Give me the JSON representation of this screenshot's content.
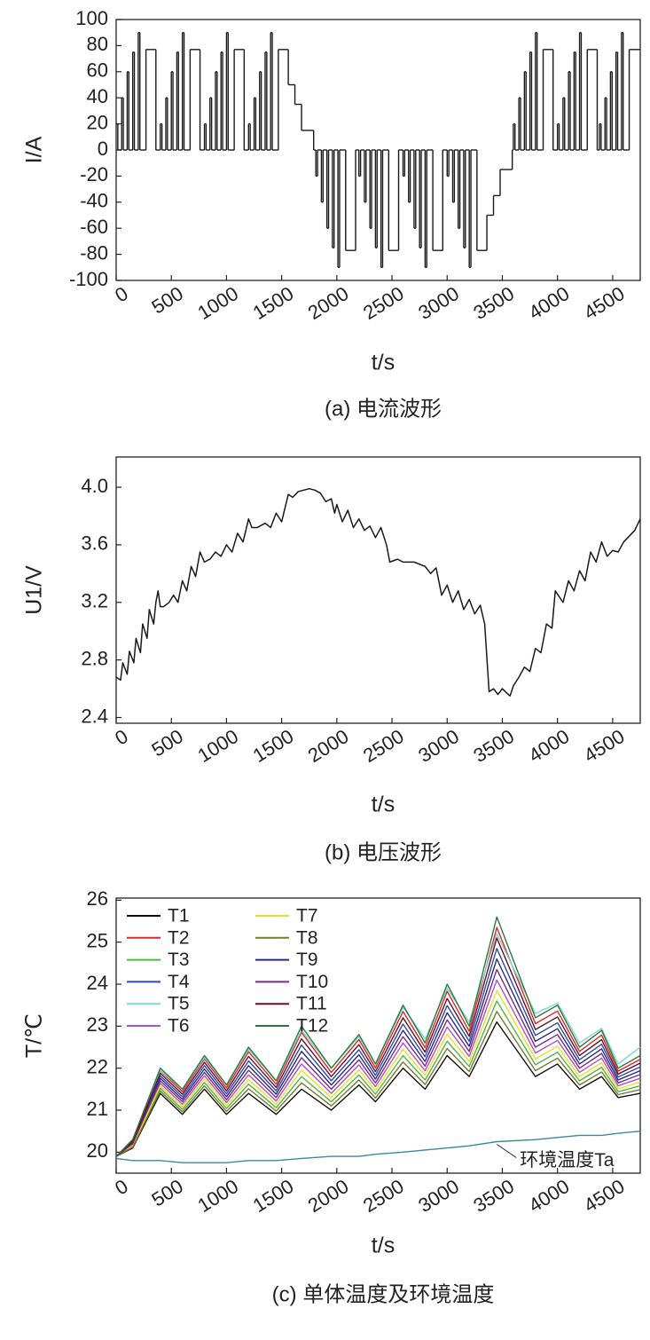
{
  "chart_data": [
    {
      "type": "line",
      "step": true,
      "title": "(a) 电流波形",
      "xlabel": "t/s",
      "ylabel": "I/A",
      "xlim": [
        0,
        4750
      ],
      "ylim": [
        -100,
        100
      ],
      "xticks": [
        0,
        500,
        1000,
        1500,
        2000,
        2500,
        3000,
        3500,
        4000,
        4500
      ],
      "yticks": [
        -100,
        -80,
        -60,
        -40,
        -20,
        0,
        20,
        40,
        60,
        80,
        100
      ],
      "x": [
        0,
        15,
        50,
        65,
        100,
        115,
        150,
        165,
        200,
        215,
        270,
        360,
        400,
        415,
        450,
        465,
        500,
        515,
        550,
        565,
        600,
        615,
        670,
        760,
        800,
        815,
        850,
        865,
        900,
        915,
        950,
        965,
        1000,
        1015,
        1070,
        1160,
        1200,
        1215,
        1250,
        1265,
        1300,
        1315,
        1350,
        1365,
        1400,
        1415,
        1470,
        1560,
        1620,
        1680,
        1790,
        1810,
        1825,
        1860,
        1875,
        1910,
        1925,
        1960,
        1975,
        2010,
        2025,
        2080,
        2170,
        2200,
        2215,
        2250,
        2265,
        2300,
        2315,
        2350,
        2365,
        2400,
        2415,
        2470,
        2560,
        2600,
        2615,
        2650,
        2665,
        2700,
        2715,
        2750,
        2765,
        2800,
        2815,
        2870,
        2960,
        3000,
        3015,
        3050,
        3065,
        3100,
        3115,
        3150,
        3165,
        3200,
        3215,
        3270,
        3360,
        3420,
        3480,
        3590,
        3600,
        3615,
        3650,
        3665,
        3700,
        3715,
        3750,
        3765,
        3800,
        3815,
        3870,
        3960,
        4000,
        4015,
        4050,
        4065,
        4100,
        4115,
        4150,
        4165,
        4200,
        4215,
        4270,
        4360,
        4380,
        4395,
        4430,
        4445,
        4480,
        4495,
        4530,
        4545,
        4580,
        4595,
        4650,
        4750
      ],
      "series": [
        {
          "color": "#1a1a1a",
          "values": [
            20,
            0,
            40,
            0,
            60,
            0,
            75,
            0,
            90,
            0,
            77,
            0,
            20,
            0,
            40,
            0,
            60,
            0,
            75,
            0,
            90,
            0,
            77,
            0,
            20,
            0,
            40,
            0,
            60,
            0,
            75,
            0,
            90,
            0,
            77,
            0,
            20,
            0,
            40,
            0,
            60,
            0,
            75,
            0,
            90,
            0,
            77,
            50,
            35,
            15,
            0,
            -20,
            0,
            -40,
            0,
            -60,
            0,
            -75,
            0,
            -90,
            0,
            -77,
            0,
            -20,
            0,
            -40,
            0,
            -60,
            0,
            -75,
            0,
            -90,
            0,
            -77,
            0,
            -20,
            0,
            -40,
            0,
            -60,
            0,
            -75,
            0,
            -90,
            0,
            -77,
            0,
            -20,
            0,
            -40,
            0,
            -60,
            0,
            -75,
            0,
            -90,
            0,
            -77,
            -50,
            -35,
            -15,
            0,
            20,
            0,
            40,
            0,
            60,
            0,
            75,
            0,
            90,
            0,
            77,
            0,
            20,
            0,
            40,
            0,
            60,
            0,
            75,
            0,
            90,
            0,
            77,
            0,
            20,
            0,
            40,
            0,
            60,
            0,
            75,
            0,
            90,
            0,
            77,
            77
          ]
        }
      ]
    },
    {
      "type": "line",
      "title": "(b) 电压波形",
      "xlabel": "t/s",
      "ylabel": "U1/V",
      "xlim": [
        0,
        4750
      ],
      "ylim": [
        2.36,
        4.21
      ],
      "xticks": [
        0,
        500,
        1000,
        1500,
        2000,
        2500,
        3000,
        3500,
        4000,
        4500
      ],
      "yticks": [
        {
          "value": 2.4,
          "label": "2.4"
        },
        {
          "value": 2.8,
          "label": "2.8"
        },
        {
          "value": 3.2,
          "label": "3.2"
        },
        {
          "value": 3.6,
          "label": "3.6"
        },
        {
          "value": 4.0,
          "label": "4.0"
        }
      ],
      "x": [
        0,
        40,
        60,
        100,
        120,
        160,
        180,
        220,
        240,
        280,
        300,
        340,
        360,
        380,
        400,
        430,
        480,
        520,
        560,
        600,
        640,
        680,
        720,
        760,
        800,
        850,
        900,
        950,
        1000,
        1050,
        1100,
        1150,
        1200,
        1230,
        1280,
        1350,
        1400,
        1450,
        1500,
        1560,
        1600,
        1650,
        1700,
        1750,
        1800,
        1850,
        1900,
        1950,
        1980,
        2000,
        2050,
        2100,
        2150,
        2200,
        2250,
        2300,
        2350,
        2400,
        2450,
        2480,
        2550,
        2600,
        2700,
        2800,
        2850,
        2900,
        2950,
        3000,
        3050,
        3100,
        3150,
        3200,
        3250,
        3300,
        3340,
        3380,
        3420,
        3460,
        3500,
        3540,
        3570,
        3600,
        3650,
        3700,
        3750,
        3800,
        3850,
        3900,
        3950,
        3980,
        4050,
        4100,
        4150,
        4200,
        4250,
        4300,
        4350,
        4400,
        4450,
        4500,
        4550,
        4600,
        4650,
        4700,
        4750
      ],
      "series": [
        {
          "color": "#1a1a1a",
          "values": [
            2.68,
            2.66,
            2.78,
            2.7,
            2.86,
            2.78,
            2.95,
            2.85,
            3.05,
            2.95,
            3.15,
            3.05,
            3.2,
            3.28,
            3.17,
            3.17,
            3.2,
            3.25,
            3.2,
            3.35,
            3.28,
            3.45,
            3.38,
            3.55,
            3.48,
            3.5,
            3.55,
            3.52,
            3.6,
            3.55,
            3.68,
            3.62,
            3.78,
            3.72,
            3.72,
            3.75,
            3.72,
            3.82,
            3.76,
            3.95,
            3.93,
            3.97,
            3.98,
            3.99,
            3.98,
            3.96,
            3.9,
            3.92,
            3.82,
            3.88,
            3.76,
            3.84,
            3.72,
            3.78,
            3.7,
            3.73,
            3.65,
            3.72,
            3.6,
            3.48,
            3.5,
            3.48,
            3.48,
            3.45,
            3.4,
            3.44,
            3.25,
            3.32,
            3.2,
            3.28,
            3.15,
            3.22,
            3.12,
            3.18,
            3.05,
            2.58,
            2.6,
            2.56,
            2.6,
            2.57,
            2.55,
            2.62,
            2.68,
            2.75,
            2.72,
            2.88,
            2.85,
            3.05,
            3.02,
            3.28,
            3.2,
            3.35,
            3.28,
            3.42,
            3.35,
            3.55,
            3.48,
            3.62,
            3.52,
            3.56,
            3.55,
            3.62,
            3.66,
            3.7,
            3.78
          ]
        }
      ]
    },
    {
      "type": "line",
      "title": "(c) 单体温度及环境温度",
      "xlabel": "t/s",
      "ylabel": "T/℃",
      "xlim": [
        0,
        4750
      ],
      "ylim": [
        19.5,
        26.05
      ],
      "xticks": [
        0,
        500,
        1000,
        1500,
        2000,
        2500,
        3000,
        3500,
        4000,
        4500
      ],
      "yticks": [
        20,
        21,
        22,
        23,
        24,
        25,
        26
      ],
      "legend_columns": 2,
      "x": [
        0,
        150,
        400,
        600,
        800,
        1000,
        1200,
        1450,
        1680,
        1950,
        2200,
        2350,
        2600,
        2800,
        3000,
        3200,
        3450,
        3800,
        4000,
        4200,
        4400,
        4550,
        4750
      ],
      "series": [
        {
          "name": "T1",
          "color": "#111111",
          "values": [
            19.9,
            20.1,
            21.4,
            20.9,
            21.5,
            20.9,
            21.4,
            20.9,
            21.5,
            21.0,
            21.6,
            21.2,
            22.0,
            21.5,
            22.3,
            21.8,
            23.1,
            21.8,
            22.1,
            21.5,
            21.8,
            21.3,
            21.4
          ]
        },
        {
          "name": "T2",
          "color": "#e0262a",
          "values": [
            19.9,
            20.28,
            21.94,
            21.44,
            22.22,
            21.53,
            22.39,
            21.62,
            22.85,
            21.9,
            22.68,
            22.01,
            23.35,
            22.49,
            23.83,
            22.88,
            25.35,
            23.06,
            23.36,
            22.4,
            22.79,
            21.93,
            22.21
          ]
        },
        {
          "name": "T3",
          "color": "#4cb848",
          "values": [
            19.9,
            20.14,
            21.52,
            21.02,
            21.66,
            21.04,
            21.62,
            21.06,
            21.8,
            21.2,
            21.84,
            21.38,
            22.3,
            21.72,
            22.64,
            22.04,
            23.6,
            22.08,
            22.38,
            21.7,
            22.02,
            21.44,
            21.58
          ]
        },
        {
          "name": "T4",
          "color": "#2b4bb0",
          "values": [
            19.9,
            20.24,
            21.82,
            21.32,
            22.06,
            21.39,
            22.17,
            21.46,
            22.55,
            21.7,
            22.44,
            21.83,
            23.05,
            22.27,
            23.49,
            22.64,
            24.85,
            22.78,
            23.08,
            22.2,
            22.57,
            21.79,
            22.03
          ]
        },
        {
          "name": "T5",
          "color": "#7dd6d6",
          "values": [
            19.9,
            20.3,
            21.95,
            21.5,
            22.25,
            21.6,
            22.45,
            21.7,
            22.9,
            22.0,
            22.75,
            22.1,
            23.45,
            22.7,
            23.9,
            23.1,
            25.2,
            23.3,
            23.55,
            22.6,
            22.95,
            22.1,
            22.5
          ]
        },
        {
          "name": "T6",
          "color": "#b050c8",
          "values": [
            19.9,
            20.18,
            21.64,
            21.14,
            21.82,
            21.18,
            21.84,
            21.22,
            22.1,
            21.4,
            22.08,
            21.56,
            22.6,
            21.94,
            22.98,
            22.28,
            24.1,
            22.36,
            22.66,
            21.9,
            22.24,
            21.58,
            21.76
          ]
        },
        {
          "name": "T7",
          "color": "#e8e020",
          "values": [
            19.9,
            20.16,
            21.58,
            21.08,
            21.74,
            21.11,
            21.73,
            21.14,
            21.95,
            21.3,
            21.96,
            21.47,
            22.45,
            21.83,
            22.81,
            22.16,
            23.85,
            22.22,
            22.52,
            21.8,
            22.13,
            21.51,
            21.67
          ]
        },
        {
          "name": "T8",
          "color": "#7a7a2a",
          "values": [
            19.9,
            20.12,
            21.46,
            20.96,
            21.58,
            20.97,
            21.51,
            20.98,
            21.65,
            21.1,
            21.72,
            21.29,
            22.15,
            21.61,
            22.47,
            21.92,
            23.35,
            21.94,
            22.24,
            21.6,
            21.91,
            21.37,
            21.49
          ]
        },
        {
          "name": "T9",
          "color": "#2a2a80",
          "values": [
            19.9,
            20.22,
            21.76,
            21.26,
            21.98,
            21.32,
            22.06,
            21.38,
            22.4,
            21.6,
            22.32,
            21.74,
            22.9,
            22.16,
            23.32,
            22.52,
            24.6,
            22.64,
            22.94,
            22.1,
            22.46,
            21.72,
            21.94
          ]
        },
        {
          "name": "T10",
          "color": "#7a2a8a",
          "values": [
            19.9,
            20.2,
            21.7,
            21.2,
            21.9,
            21.25,
            21.95,
            21.3,
            22.25,
            21.5,
            22.2,
            21.65,
            22.75,
            22.05,
            23.15,
            22.4,
            24.35,
            22.5,
            22.8,
            22.0,
            22.35,
            21.65,
            21.85
          ]
        },
        {
          "name": "T11",
          "color": "#6a1020",
          "values": [
            19.9,
            20.26,
            21.88,
            21.38,
            22.14,
            21.46,
            22.28,
            21.54,
            22.7,
            21.8,
            22.56,
            21.92,
            23.2,
            22.38,
            23.66,
            22.76,
            25.1,
            22.92,
            23.22,
            22.3,
            22.68,
            21.86,
            22.12
          ]
        },
        {
          "name": "T12",
          "color": "#2a7a3a",
          "values": [
            19.9,
            20.3,
            22.0,
            21.5,
            22.3,
            21.6,
            22.5,
            21.7,
            23.0,
            22.0,
            22.8,
            22.1,
            23.5,
            22.6,
            24.0,
            23.0,
            25.6,
            23.2,
            23.5,
            22.5,
            22.9,
            22.0,
            22.3
          ]
        },
        {
          "name": "环境温度Ta",
          "label": "inline",
          "color": "#3a8a9a",
          "values": [
            19.85,
            19.8,
            19.8,
            19.75,
            19.75,
            19.75,
            19.8,
            19.8,
            19.85,
            19.9,
            19.9,
            19.95,
            20.0,
            20.05,
            20.1,
            20.15,
            20.25,
            20.3,
            20.35,
            20.4,
            20.4,
            20.45,
            20.5
          ]
        }
      ]
    }
  ]
}
